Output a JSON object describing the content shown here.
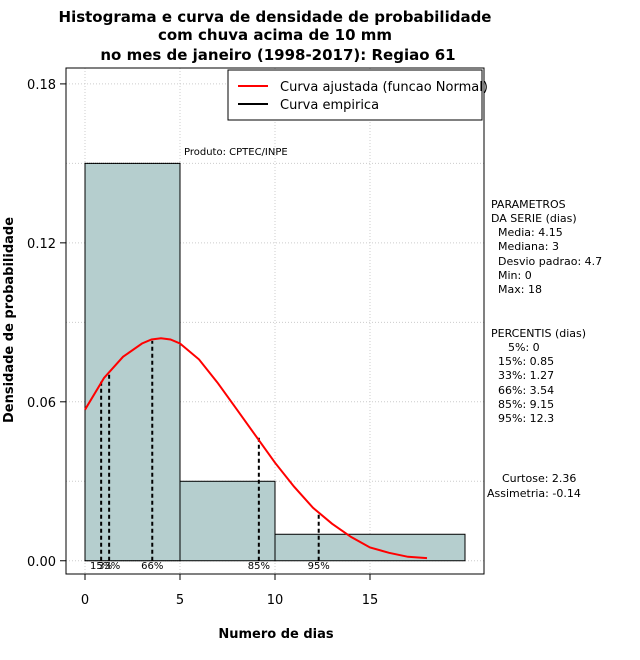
{
  "chart_data": {
    "type": "bar",
    "title": [
      "Histograma e curva de densidade de probabilidade",
      "com chuva acima de 10 mm",
      "no mes de janeiro (1998-2017): Regiao 61"
    ],
    "xlabel": "Numero de dias",
    "ylabel": "Densidade de probabilidade",
    "xlim": [
      -1,
      21
    ],
    "ylim": [
      -0.005,
      0.186
    ],
    "x_ticks": [
      0,
      5,
      10,
      15
    ],
    "x_tick_labels": [
      "0",
      "5",
      "10",
      "15"
    ],
    "y_ticks": [
      0.0,
      0.06,
      0.12,
      0.18
    ],
    "y_tick_labels": [
      "0.00",
      "0.06",
      "0.12",
      "0.18"
    ],
    "grid": true,
    "histogram": {
      "bins": [
        {
          "x0": 0,
          "x1": 5,
          "density": 0.15
        },
        {
          "x0": 5,
          "x1": 10,
          "density": 0.03
        },
        {
          "x0": 10,
          "x1": 20,
          "density": 0.01
        }
      ],
      "color": "#b5cece"
    },
    "series": [
      {
        "name": "Curva ajustada (funcao Normal)",
        "color": "#ff0000",
        "x": [
          0,
          1,
          2,
          3,
          3.5,
          4,
          4.5,
          5,
          6,
          7,
          8,
          9,
          10,
          11,
          12,
          13,
          14,
          15,
          16,
          17,
          18
        ],
        "y": [
          0.057,
          0.069,
          0.077,
          0.082,
          0.0835,
          0.084,
          0.0835,
          0.082,
          0.076,
          0.067,
          0.057,
          0.047,
          0.037,
          0.028,
          0.02,
          0.014,
          0.009,
          0.005,
          0.003,
          0.0015,
          0.001
        ]
      },
      {
        "name": "Curva empirica",
        "color": "#000000",
        "x": [],
        "y": []
      }
    ],
    "legend_position": "top-right",
    "percentile_markers": [
      {
        "label": "15%",
        "x": 0.85,
        "y": 0.068
      },
      {
        "label": "33%",
        "x": 1.27,
        "y": 0.071
      },
      {
        "label": "66%",
        "x": 3.54,
        "y": 0.083
      },
      {
        "label": "85%",
        "x": 9.15,
        "y": 0.047
      },
      {
        "label": "95%",
        "x": 12.3,
        "y": 0.0185
      }
    ],
    "annotation": "Produto: CPTEC/INPE"
  },
  "side_panel": {
    "parametros": [
      "PARAMETROS",
      "DA SERIE (dias)",
      "Media: 4.15",
      "Mediana: 3",
      "Desvio padrao: 4.7",
      "Min: 0",
      "Max: 18"
    ],
    "percentis": [
      "PERCENTIS (dias)",
      "5%: 0",
      "15%: 0.85",
      "33%: 1.27",
      "66%: 3.54",
      "85%: 9.15",
      "95%: 12.3"
    ],
    "stats": [
      "Curtose: 2.36",
      "Assimetria: -0.14"
    ]
  }
}
